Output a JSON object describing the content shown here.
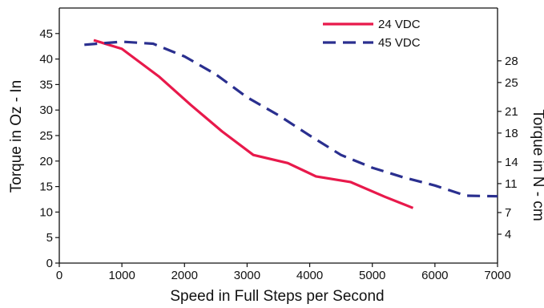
{
  "chart_data": {
    "type": "line",
    "title": "",
    "xlabel": "Speed in Full Steps per Second",
    "ylabel": "Torque in Oz - In",
    "ylabel_right": "Torque in N - cm",
    "xlim": [
      0,
      7000
    ],
    "ylim": [
      0,
      50
    ],
    "x_ticks": [
      0,
      1000,
      2000,
      3000,
      4000,
      5000,
      6000,
      7000
    ],
    "x_tick_labels": [
      "0",
      "1000",
      "2000",
      "3000",
      "4000",
      "5000",
      "6000",
      "7000"
    ],
    "y_ticks": [
      0,
      5,
      10,
      15,
      20,
      25,
      30,
      35,
      40,
      45
    ],
    "y_tick_labels": [
      "0",
      "5",
      "10",
      "15",
      "20",
      "25",
      "30",
      "35",
      "40",
      "45"
    ],
    "y2_ticks": [
      4,
      7,
      11,
      14,
      18,
      21,
      25,
      28
    ],
    "y2_tick_labels": [
      "4",
      "7",
      "11",
      "14",
      "18",
      "21",
      "25",
      "28"
    ],
    "y2_ticks_position_in_left_units": [
      5.66,
      9.91,
      15.58,
      19.83,
      25.49,
      29.74,
      35.4,
      39.65
    ],
    "grid": false,
    "legend_position": "top-right",
    "series": [
      {
        "name": "24 VDC",
        "color": "#e8194b",
        "dash": "solid",
        "x": [
          550,
          1000,
          1600,
          2100,
          2600,
          3100,
          3650,
          4100,
          4650,
          5200,
          5650
        ],
        "y": [
          43.7,
          42.0,
          36.5,
          31.0,
          25.8,
          21.2,
          19.6,
          17.0,
          15.9,
          13.0,
          10.8
        ]
      },
      {
        "name": "45 VDC",
        "color": "#2a2f8f",
        "dash": "dashed",
        "x": [
          400,
          1000,
          1500,
          2000,
          2500,
          3000,
          3500,
          4000,
          4500,
          5000,
          5500,
          6000,
          6500,
          7000
        ],
        "y": [
          42.8,
          43.4,
          43.0,
          40.5,
          37.0,
          32.5,
          29.0,
          25.0,
          21.2,
          18.7,
          16.8,
          15.2,
          13.2,
          13.1
        ]
      }
    ]
  }
}
